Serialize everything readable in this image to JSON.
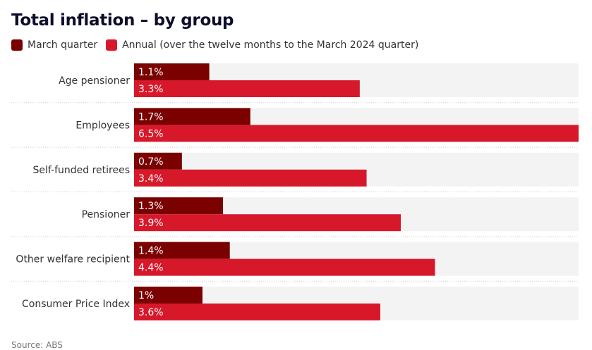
{
  "chart_data": {
    "type": "bar",
    "title": "Total inflation – by group",
    "categories": [
      "Age pensioner",
      "Employees",
      "Self-funded retirees",
      "Pensioner",
      "Other welfare recipient",
      "Consumer Price Index"
    ],
    "series": [
      {
        "name": "March quarter",
        "color": "#7b0000",
        "values": [
          1.1,
          1.7,
          0.7,
          1.3,
          1.4,
          1.0
        ],
        "labels": [
          "1.1%",
          "1.7%",
          "0.7%",
          "1.3%",
          "1.4%",
          "1%"
        ]
      },
      {
        "name": "Annual (over the twelve months to the March 2024 quarter)",
        "color": "#d7182a",
        "values": [
          3.3,
          6.5,
          3.4,
          3.9,
          4.4,
          3.6
        ],
        "labels": [
          "3.3%",
          "6.5%",
          "3.4%",
          "3.9%",
          "4.4%",
          "3.6%"
        ]
      }
    ],
    "xlim": [
      0,
      6.5
    ],
    "orientation": "horizontal",
    "background_band_color": "#f3f3f3",
    "source": "Source: ABS"
  }
}
